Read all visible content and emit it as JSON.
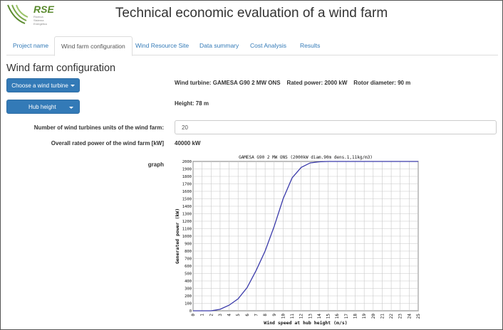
{
  "logo": {
    "text": "RSE",
    "sub": "Ricerca Sistema Energetico"
  },
  "app_title": "Technical economic evaluation of a wind farm",
  "tabs": [
    {
      "label": "Project name"
    },
    {
      "label": "Wind farm configuration",
      "active": true
    },
    {
      "label": "Wind Resource Site"
    },
    {
      "label": "Data summary"
    },
    {
      "label": "Cost Analysis"
    },
    {
      "label": "Results"
    }
  ],
  "section_title": "Wind farm configuration",
  "buttons": {
    "turbine": "Choose a wind turbine",
    "hub": "Hub height"
  },
  "turbine_info": {
    "label_turbine": "Wind turbine:",
    "turbine": "GAMESA G90 2 MW ONS",
    "label_power": "Rated power:",
    "power": "2000 kW",
    "label_rotor": "Rotor diameter:",
    "rotor": "90 m"
  },
  "height": {
    "label": "Height:",
    "value": "78 m"
  },
  "form": {
    "units_label": "Number of wind turbines units of the wind farm:",
    "units_value": "20",
    "overall_label": "Overall rated power of the wind farm [kW]",
    "overall_value": "40000 kW",
    "graph_label": "graph"
  },
  "colors": {
    "primary": "#337ab7",
    "curve": "#3a3aaa",
    "logo": "#5a8a2e"
  },
  "chart_data": {
    "type": "line",
    "title": "GAMESA  G90 2 MW ONS (2000kW  diam.90m  dens.1,11kg/m3)",
    "xlabel": "Wind speed at hub height (m/s)",
    "ylabel": "Generated power (kW)",
    "xlim": [
      0,
      25
    ],
    "ylim": [
      0,
      2000
    ],
    "xticks": [
      0,
      1,
      2,
      3,
      4,
      5,
      6,
      7,
      8,
      9,
      10,
      11,
      12,
      13,
      14,
      15,
      16,
      17,
      18,
      19,
      20,
      21,
      22,
      23,
      24,
      25
    ],
    "yticks": [
      0,
      100,
      200,
      300,
      400,
      500,
      600,
      700,
      800,
      900,
      1000,
      1100,
      1200,
      1300,
      1400,
      1500,
      1600,
      1700,
      1800,
      1900,
      2000
    ],
    "grid": true,
    "series": [
      {
        "x": [
          0,
          1,
          2,
          3,
          4,
          5,
          6,
          7,
          8,
          9,
          10,
          11,
          12,
          13,
          14,
          15,
          16,
          17,
          18,
          19,
          20,
          21,
          22,
          23,
          24,
          25
        ],
        "y": [
          0,
          0,
          0,
          20,
          75,
          160,
          310,
          540,
          800,
          1130,
          1500,
          1780,
          1920,
          1980,
          1995,
          2000,
          2000,
          2000,
          2000,
          2000,
          2000,
          2000,
          2000,
          2000,
          2000,
          2000
        ]
      }
    ]
  }
}
